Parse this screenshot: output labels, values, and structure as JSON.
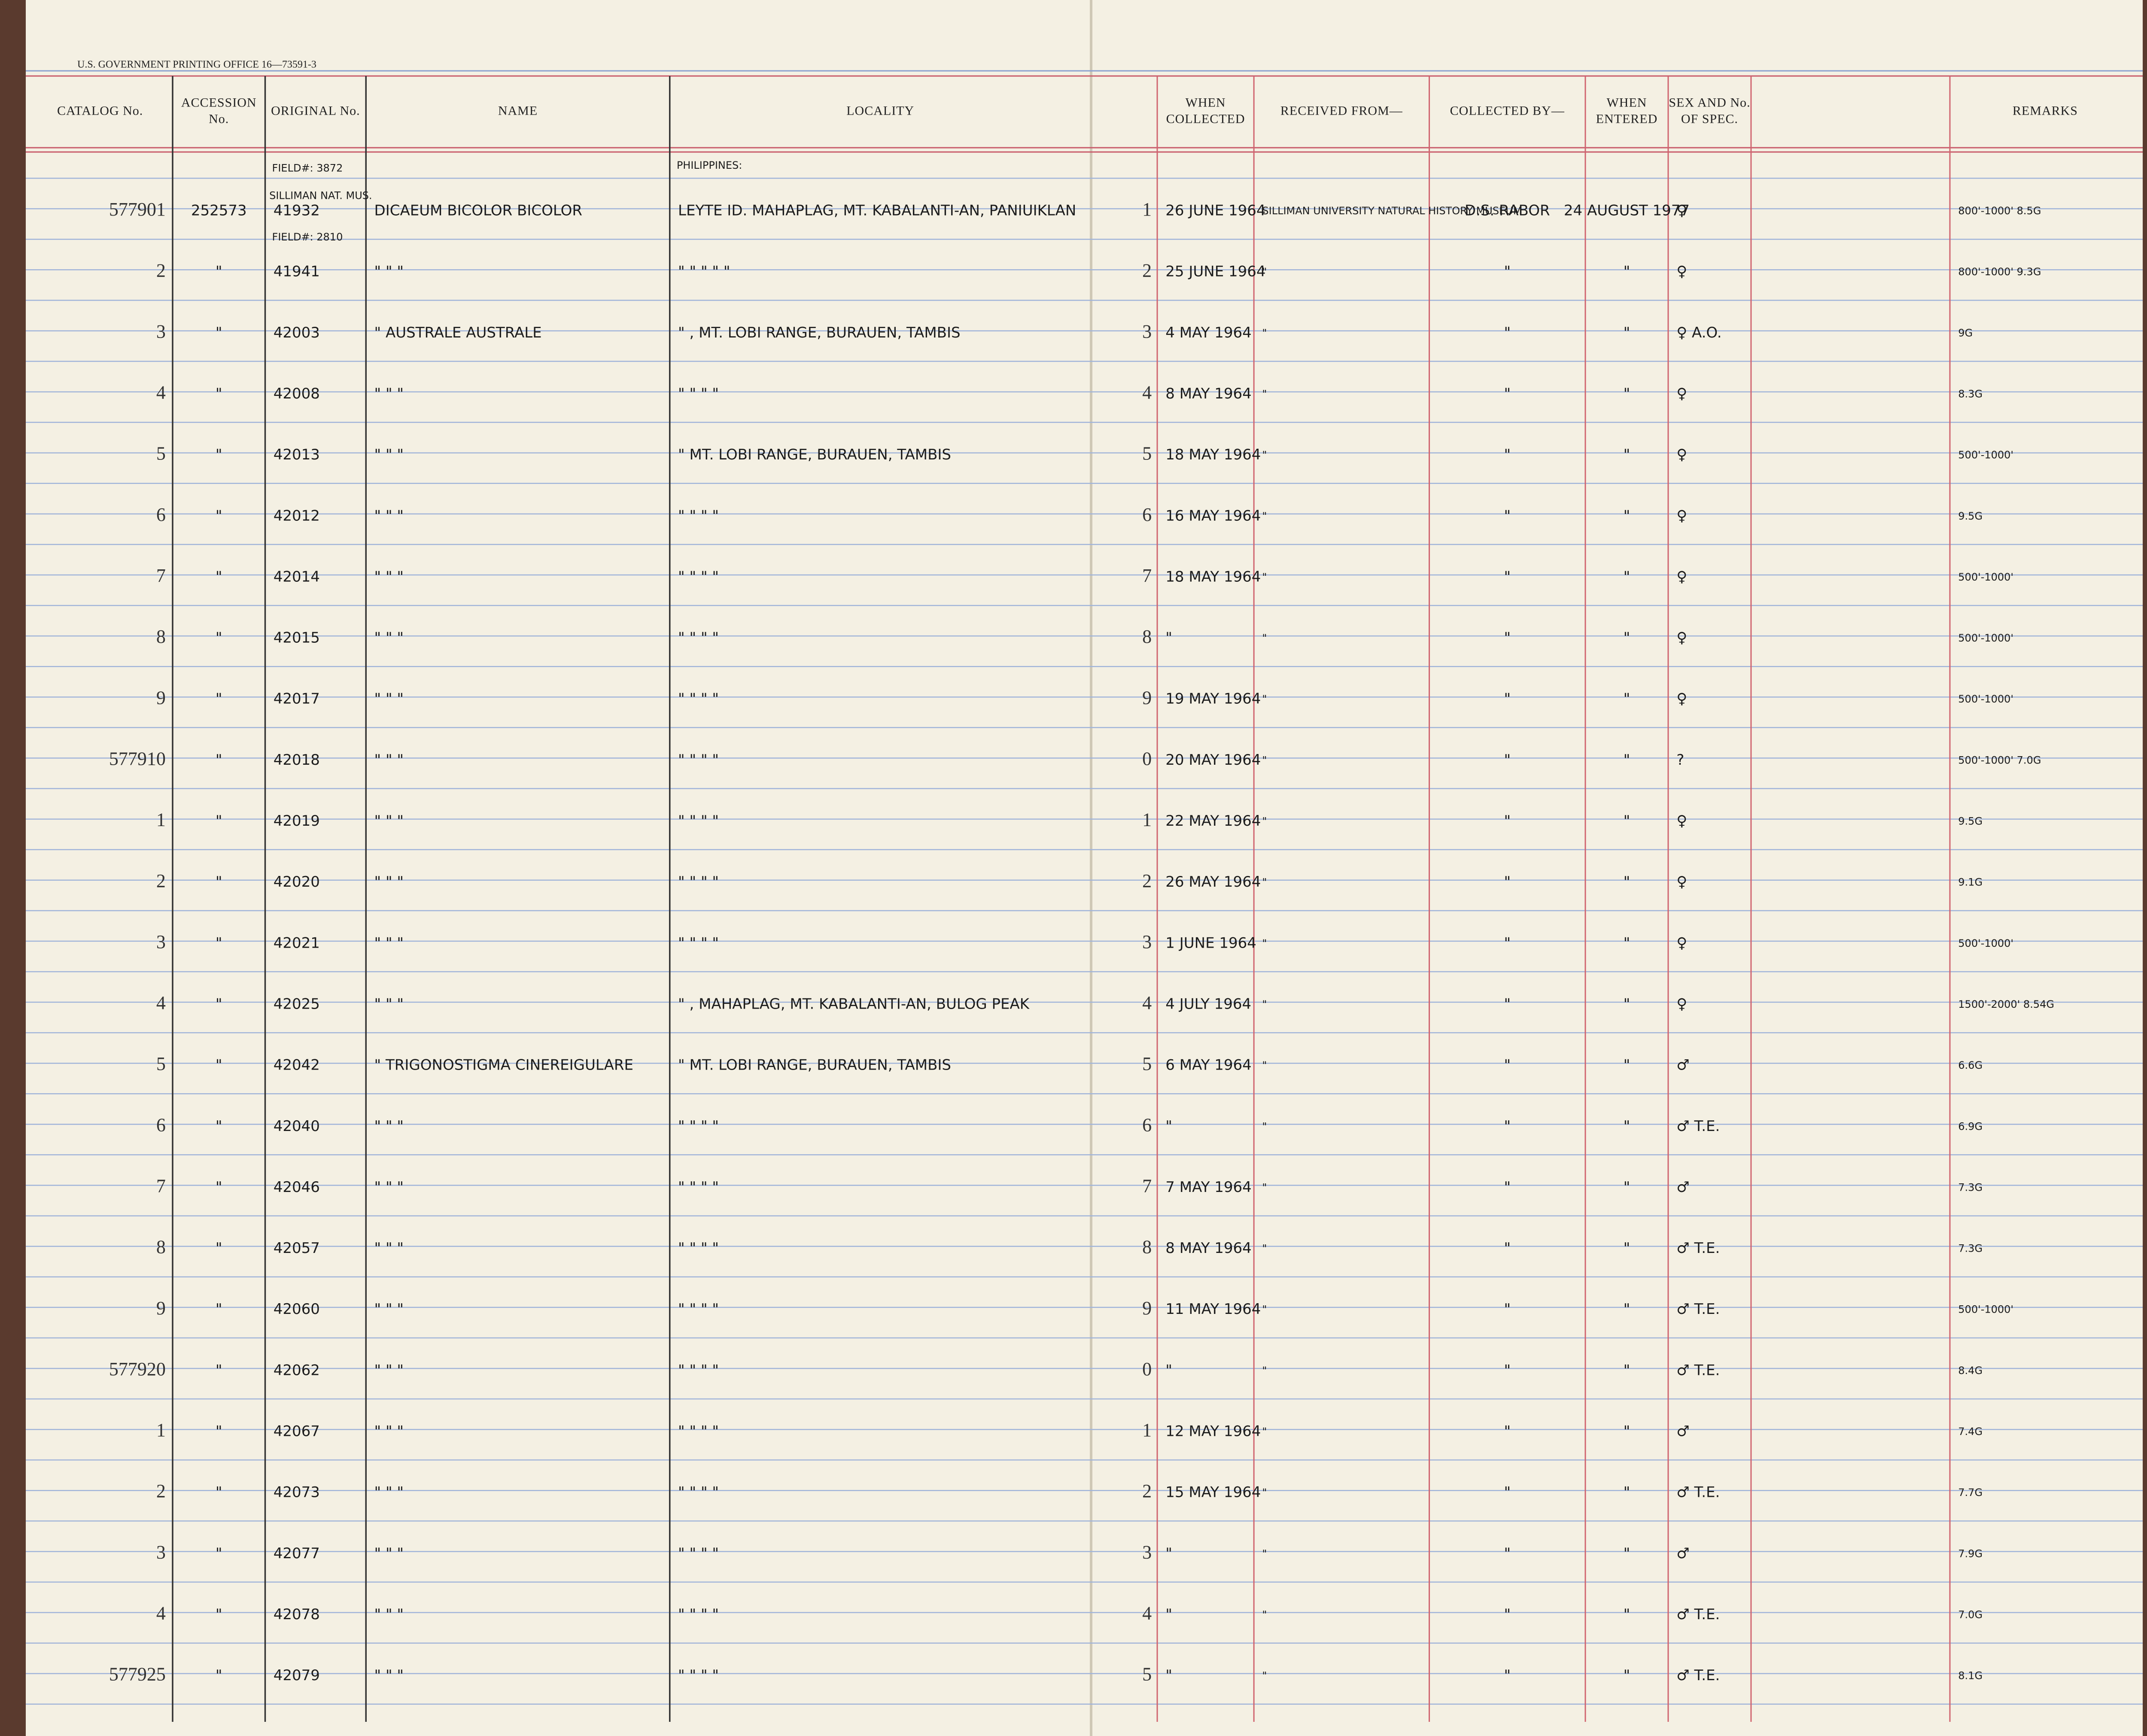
{
  "header": {
    "printer_line": "U.S. GOVERNMENT PRINTING OFFICE 16—73591-3",
    "columns": [
      "CATALOG No.",
      "ACCESSION No.",
      "ORIGINAL No.",
      "NAME",
      "LOCALITY",
      "WHEN COLLECTED",
      "RECEIVED FROM—",
      "COLLECTED BY—",
      "WHEN ENTERED",
      "SEX AND No. OF SPEC.",
      "REMARKS"
    ]
  },
  "notes": {
    "field_1": "FIELD#: 3872",
    "museum": "SILLIMAN NAT. MUS.",
    "field_2": "FIELD#: 2810",
    "country": "PHILIPPINES:"
  },
  "rows": [
    {
      "catalog": "577901",
      "accession": "252573",
      "original": "41932",
      "name": "DICAEUM BICOLOR BICOLOR",
      "locality": "LEYTE ID. MAHAPLAG, MT. KABALANTI-AN, PANIUIKLAN",
      "index": "1",
      "collected": "26 JUNE 1964",
      "received": "SILLIMAN UNIVERSITY NATURAL HISTORY MUSEUM",
      "collector": "D.S. RABOR",
      "entered": "24 AUGUST 1977",
      "sex": "♀",
      "remarks": "800'-1000' 8.5G"
    },
    {
      "catalog": "2",
      "accession": "\"",
      "original": "41941",
      "name": "\" \" \"",
      "locality": "\" \" \" \" \"",
      "index": "2",
      "collected": "25 JUNE 1964",
      "received": "\"",
      "collector": "\"",
      "entered": "\"",
      "sex": "♀",
      "remarks": "800'-1000' 9.3G"
    },
    {
      "catalog": "3",
      "accession": "\"",
      "original": "42003",
      "name": "\" AUSTRALE AUSTRALE",
      "locality": "\" , MT. LOBI RANGE, BURAUEN, TAMBIS",
      "index": "3",
      "collected": "4 MAY 1964",
      "received": "\"",
      "collector": "\"",
      "entered": "\"",
      "sex": "♀ A.O.",
      "remarks": "9G"
    },
    {
      "catalog": "4",
      "accession": "\"",
      "original": "42008",
      "name": "\" \" \"",
      "locality": "\" \" \" \"",
      "index": "4",
      "collected": "8 MAY 1964",
      "received": "\"",
      "collector": "\"",
      "entered": "\"",
      "sex": "♀",
      "remarks": "8.3G"
    },
    {
      "catalog": "5",
      "accession": "\"",
      "original": "42013",
      "name": "\" \" \"",
      "locality": "\" MT. LOBI RANGE, BURAUEN, TAMBIS",
      "index": "5",
      "collected": "18 MAY 1964",
      "received": "\"",
      "collector": "\"",
      "entered": "\"",
      "sex": "♀",
      "remarks": "500'-1000'"
    },
    {
      "catalog": "6",
      "accession": "\"",
      "original": "42012",
      "name": "\" \" \"",
      "locality": "\" \" \" \"",
      "index": "6",
      "collected": "16 MAY 1964",
      "received": "\"",
      "collector": "\"",
      "entered": "\"",
      "sex": "♀",
      "remarks": "9.5G"
    },
    {
      "catalog": "7",
      "accession": "\"",
      "original": "42014",
      "name": "\" \" \"",
      "locality": "\" \" \" \"",
      "index": "7",
      "collected": "18 MAY 1964",
      "received": "\"",
      "collector": "\"",
      "entered": "\"",
      "sex": "♀",
      "remarks": "500'-1000'"
    },
    {
      "catalog": "8",
      "accession": "\"",
      "original": "42015",
      "name": "\" \" \"",
      "locality": "\" \" \" \"",
      "index": "8",
      "collected": "\"",
      "received": "\"",
      "collector": "\"",
      "entered": "\"",
      "sex": "♀",
      "remarks": "500'-1000'"
    },
    {
      "catalog": "9",
      "accession": "\"",
      "original": "42017",
      "name": "\" \" \"",
      "locality": "\" \" \" \"",
      "index": "9",
      "collected": "19 MAY 1964",
      "received": "\"",
      "collector": "\"",
      "entered": "\"",
      "sex": "♀",
      "remarks": "500'-1000'"
    },
    {
      "catalog": "577910",
      "accession": "\"",
      "original": "42018",
      "name": "\" \" \"",
      "locality": "\" \" \" \"",
      "index": "0",
      "collected": "20 MAY 1964",
      "received": "\"",
      "collector": "\"",
      "entered": "\"",
      "sex": "?",
      "remarks": "500'-1000' 7.0G"
    },
    {
      "catalog": "1",
      "accession": "\"",
      "original": "42019",
      "name": "\" \" \"",
      "locality": "\" \" \" \"",
      "index": "1",
      "collected": "22 MAY 1964",
      "received": "\"",
      "collector": "\"",
      "entered": "\"",
      "sex": "♀",
      "remarks": "9.5G"
    },
    {
      "catalog": "2",
      "accession": "\"",
      "original": "42020",
      "name": "\" \" \"",
      "locality": "\" \" \" \"",
      "index": "2",
      "collected": "26 MAY 1964",
      "received": "\"",
      "collector": "\"",
      "entered": "\"",
      "sex": "♀",
      "remarks": "9.1G"
    },
    {
      "catalog": "3",
      "accession": "\"",
      "original": "42021",
      "name": "\" \" \"",
      "locality": "\" \" \" \"",
      "index": "3",
      "collected": "1 JUNE 1964",
      "received": "\"",
      "collector": "\"",
      "entered": "\"",
      "sex": "♀",
      "remarks": "500'-1000'"
    },
    {
      "catalog": "4",
      "accession": "\"",
      "original": "42025",
      "name": "\" \" \"",
      "locality": "\" , MAHAPLAG, MT. KABALANTI-AN, BULOG PEAK",
      "index": "4",
      "collected": "4 JULY 1964",
      "received": "\"",
      "collector": "\"",
      "entered": "\"",
      "sex": "♀",
      "remarks": "1500'-2000' 8.54G"
    },
    {
      "catalog": "5",
      "accession": "\"",
      "original": "42042",
      "name": "\" TRIGONOSTIGMA CINEREIGULARE",
      "locality": "\" MT. LOBI RANGE, BURAUEN, TAMBIS",
      "index": "5",
      "collected": "6 MAY 1964",
      "received": "\"",
      "collector": "\"",
      "entered": "\"",
      "sex": "♂",
      "remarks": "6.6G"
    },
    {
      "catalog": "6",
      "accession": "\"",
      "original": "42040",
      "name": "\" \" \"",
      "locality": "\" \" \" \"",
      "index": "6",
      "collected": "\"",
      "received": "\"",
      "collector": "\"",
      "entered": "\"",
      "sex": "♂ T.E.",
      "remarks": "6.9G"
    },
    {
      "catalog": "7",
      "accession": "\"",
      "original": "42046",
      "name": "\" \" \"",
      "locality": "\" \" \" \"",
      "index": "7",
      "collected": "7 MAY 1964",
      "received": "\"",
      "collector": "\"",
      "entered": "\"",
      "sex": "♂",
      "remarks": "7.3G"
    },
    {
      "catalog": "8",
      "accession": "\"",
      "original": "42057",
      "name": "\" \" \"",
      "locality": "\" \" \" \"",
      "index": "8",
      "collected": "8 MAY 1964",
      "received": "\"",
      "collector": "\"",
      "entered": "\"",
      "sex": "♂ T.E.",
      "remarks": "7.3G"
    },
    {
      "catalog": "9",
      "accession": "\"",
      "original": "42060",
      "name": "\" \" \"",
      "locality": "\" \" \" \"",
      "index": "9",
      "collected": "11 MAY 1964",
      "received": "\"",
      "collector": "\"",
      "entered": "\"",
      "sex": "♂ T.E.",
      "remarks": "500'-1000'"
    },
    {
      "catalog": "577920",
      "accession": "\"",
      "original": "42062",
      "name": "\" \" \"",
      "locality": "\" \" \" \"",
      "index": "0",
      "collected": "\"",
      "received": "\"",
      "collector": "\"",
      "entered": "\"",
      "sex": "♂ T.E.",
      "remarks": "8.4G"
    },
    {
      "catalog": "1",
      "accession": "\"",
      "original": "42067",
      "name": "\" \" \"",
      "locality": "\" \" \" \"",
      "index": "1",
      "collected": "12 MAY 1964",
      "received": "\"",
      "collector": "\"",
      "entered": "\"",
      "sex": "♂",
      "remarks": "7.4G"
    },
    {
      "catalog": "2",
      "accession": "\"",
      "original": "42073",
      "name": "\" \" \"",
      "locality": "\" \" \" \"",
      "index": "2",
      "collected": "15 MAY 1964",
      "received": "\"",
      "collector": "\"",
      "entered": "\"",
      "sex": "♂ T.E.",
      "remarks": "7.7G"
    },
    {
      "catalog": "3",
      "accession": "\"",
      "original": "42077",
      "name": "\" \" \"",
      "locality": "\" \" \" \"",
      "index": "3",
      "collected": "\"",
      "received": "\"",
      "collector": "\"",
      "entered": "\"",
      "sex": "♂",
      "remarks": "7.9G"
    },
    {
      "catalog": "4",
      "accession": "\"",
      "original": "42078",
      "name": "\" \" \"",
      "locality": "\" \" \" \"",
      "index": "4",
      "collected": "\"",
      "received": "\"",
      "collector": "\"",
      "entered": "\"",
      "sex": "♂ T.E.",
      "remarks": "7.0G"
    },
    {
      "catalog": "577925",
      "accession": "\"",
      "original": "42079",
      "name": "\" \" \"",
      "locality": "\" \" \" \"",
      "index": "5",
      "collected": "\"",
      "received": "\"",
      "collector": "\"",
      "entered": "\"",
      "sex": "♂ T.E.",
      "remarks": "8.1G"
    }
  ]
}
